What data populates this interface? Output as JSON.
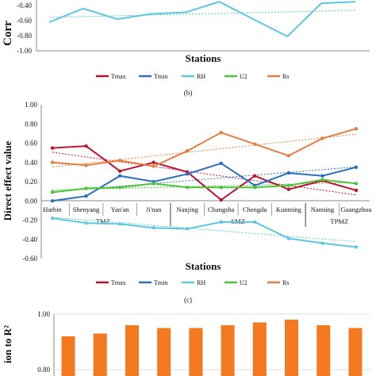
{
  "chart_data": [
    {
      "panel": "top-partial",
      "type": "line",
      "ylabel_visible": "Corr",
      "xlabel": "Stations",
      "yticks": [
        "-0.40",
        "-0.60",
        "-0.80",
        "-1.00"
      ],
      "ylim": [
        -1.0,
        -0.3
      ],
      "series": [
        {
          "name": "RH",
          "color": "#5BC8E0",
          "values": [
            -0.62,
            -0.44,
            -0.58,
            -0.51,
            -0.49,
            -0.35,
            -0.58,
            -0.81,
            -0.37,
            -0.35
          ]
        }
      ],
      "legend": [
        "Tmax",
        "Tmin",
        "RH",
        "U2",
        "Rs"
      ],
      "caption": "(b)"
    },
    {
      "panel": "middle",
      "type": "line",
      "ylabel": "Direct effect value",
      "xlabel": "Stations",
      "ylim": [
        -0.6,
        1.0
      ],
      "yticks": [
        "1.00",
        "0.80",
        "0.60",
        "0.40",
        "0.20",
        "0.00",
        "-0.20",
        "-0.40",
        "-0.60"
      ],
      "categories": [
        "Harbin",
        "Shenyang",
        "Yan'an",
        "Ji'nan",
        "Nanjing",
        "Changsha",
        "Chengdu",
        "Kunming",
        "Nanning",
        "Guangzhou"
      ],
      "zones": [
        "TMZ",
        "SMZ",
        "TPMZ"
      ],
      "series": [
        {
          "name": "Tmax",
          "color": "#C0102E",
          "values": [
            0.55,
            0.57,
            0.31,
            0.4,
            0.3,
            0.01,
            0.26,
            0.12,
            0.21,
            0.11
          ]
        },
        {
          "name": "Tmin",
          "color": "#2C6FC0",
          "values": [
            0.0,
            0.05,
            0.26,
            0.2,
            0.28,
            0.39,
            0.16,
            0.29,
            0.26,
            0.35
          ]
        },
        {
          "name": "RH",
          "color": "#5BC8E0",
          "values": [
            -0.18,
            -0.23,
            -0.24,
            -0.28,
            -0.29,
            -0.22,
            -0.22,
            -0.39,
            -0.44,
            -0.48
          ]
        },
        {
          "name": "U2",
          "color": "#4CC43A",
          "values": [
            0.09,
            0.13,
            0.14,
            0.18,
            0.14,
            0.14,
            0.14,
            0.16,
            0.22,
            0.18
          ]
        },
        {
          "name": "Rs",
          "color": "#E87C3E",
          "values": [
            0.4,
            0.37,
            0.42,
            0.36,
            0.52,
            0.71,
            0.59,
            0.47,
            0.65,
            0.75
          ]
        }
      ],
      "legend": [
        "Tmax",
        "Tmin",
        "RH",
        "U2",
        "Rs"
      ],
      "caption": "(c)"
    },
    {
      "panel": "bottom-partial",
      "type": "bar",
      "ylabel_visible": "ion to R²",
      "ylim": [
        0.8,
        1.0
      ],
      "yticks": [
        "1.00",
        "0.80"
      ],
      "color": "#F47920",
      "values": [
        0.92,
        0.93,
        0.96,
        0.95,
        0.95,
        0.96,
        0.97,
        0.98,
        0.96,
        0.95
      ]
    }
  ]
}
